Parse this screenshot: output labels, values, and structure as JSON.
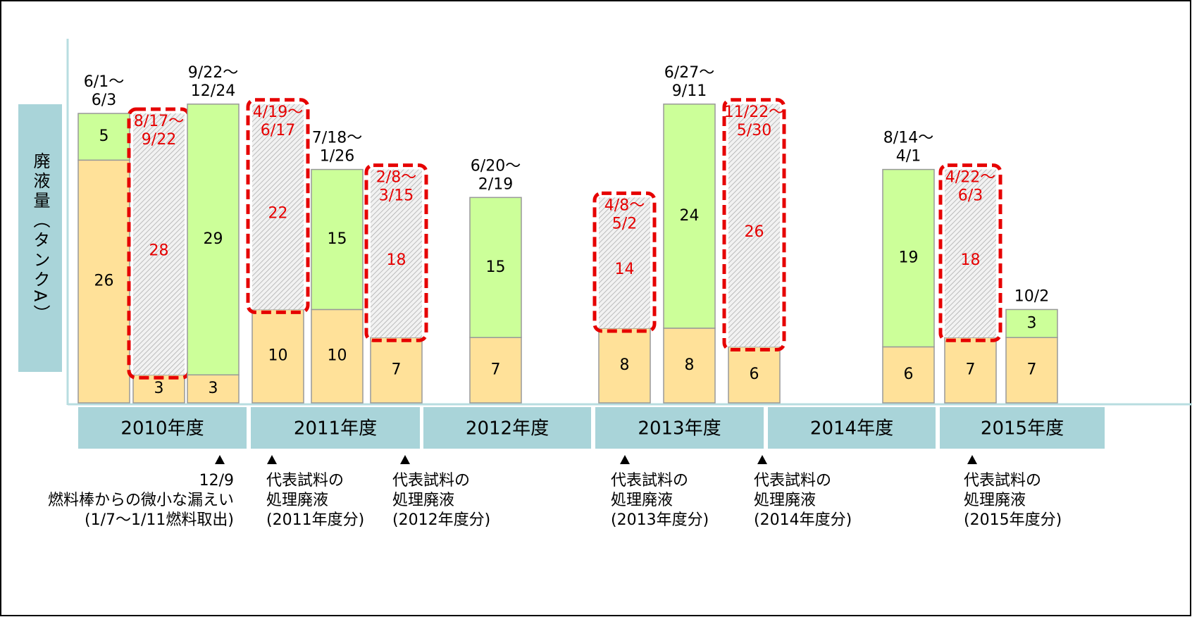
{
  "chart_data": {
    "type": "bar",
    "stacked": true,
    "y_label": "廃液量（タンクA）",
    "categories": [
      [
        "6/1～",
        "6/3"
      ],
      [
        "8/17～",
        "9/22"
      ],
      [
        "9/22～",
        "12/24"
      ],
      [
        "4/19～",
        "6/17"
      ],
      [
        "7/18～",
        "1/26"
      ],
      [
        "2/8～",
        "3/15"
      ],
      [
        "6/20～",
        "2/19"
      ],
      [
        "4/8～",
        "5/2"
      ],
      [
        "6/27～",
        "9/11"
      ],
      [
        "11/22～",
        "5/30"
      ],
      [
        "8/14～",
        "4/1"
      ],
      [
        "4/22～",
        "6/3"
      ],
      [
        "10/2"
      ]
    ],
    "series": [
      {
        "color": "#ffe199",
        "values": [
          26,
          3,
          3,
          10,
          10,
          7,
          7,
          8,
          8,
          6,
          6,
          7,
          7
        ]
      },
      {
        "color": "#ccff99",
        "values": [
          5,
          null,
          29,
          null,
          15,
          null,
          15,
          null,
          24,
          null,
          19,
          null,
          3
        ]
      },
      {
        "color": "#e60000",
        "hatched": true,
        "values": [
          null,
          28,
          null,
          22,
          null,
          18,
          null,
          14,
          null,
          26,
          null,
          18,
          null
        ]
      }
    ],
    "groups": [
      "2010年度",
      "2011年度",
      "2012年度",
      "2013年度",
      "2014年度",
      "2015年度"
    ],
    "group_color": "#a9d4d9",
    "ylim": [
      0,
      39
    ],
    "annotations": [
      [
        "12/9",
        "燃料棒からの微小な漏えい",
        "(1/7～1/11燃料取出)"
      ],
      [
        "代表試料の",
        "処理廃液",
        "(2011年度分)"
      ],
      [
        "代表試料の",
        "処理廃液",
        "(2012年度分)"
      ],
      [
        "代表試料の",
        "処理廃液",
        "(2013年度分)"
      ],
      [
        "代表試料の",
        "処理廃液",
        "(2014年度分)"
      ],
      [
        "代表試料の",
        "処理廃液",
        "(2015年度分)"
      ]
    ]
  }
}
